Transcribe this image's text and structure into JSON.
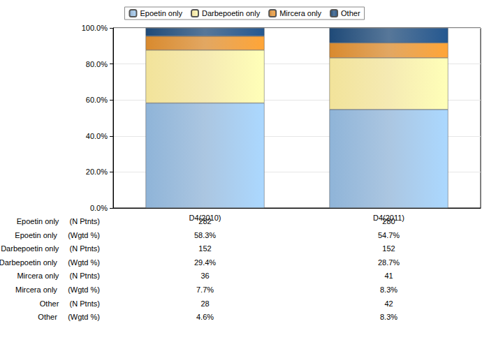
{
  "chart_data": {
    "type": "bar",
    "stacked": true,
    "grid": true,
    "legend": "top",
    "categories": [
      "D4(2010)",
      "D4(2011)"
    ],
    "ylim": [
      0,
      100
    ],
    "yticks": [
      {
        "value": 0,
        "label": "0.0%"
      },
      {
        "value": 20,
        "label": "20.0%"
      },
      {
        "value": 40,
        "label": "40.0%"
      },
      {
        "value": 60,
        "label": "60.0%"
      },
      {
        "value": 80,
        "label": "80.0%"
      },
      {
        "value": 100,
        "label": "100.0%"
      }
    ],
    "series": [
      {
        "name": "Epoetin only",
        "color": "#8fb4d8",
        "values": [
          58.3,
          54.7
        ]
      },
      {
        "name": "Darbepoetin only",
        "color": "#f2e39a",
        "values": [
          29.4,
          28.7
        ]
      },
      {
        "name": "Mircera only",
        "color": "#d98a2e",
        "values": [
          7.7,
          8.3
        ]
      },
      {
        "name": "Other",
        "color": "#1f4a78",
        "values": [
          4.6,
          8.3
        ]
      }
    ],
    "table": {
      "rows": [
        {
          "label": "Epoetin only",
          "measure": "(N Ptnts)",
          "cells": [
            "282",
            "280"
          ]
        },
        {
          "label": "Epoetin only",
          "measure": "(Wgtd %)",
          "cells": [
            "58.3%",
            "54.7%"
          ]
        },
        {
          "label": "Darbepoetin only",
          "measure": "(N Ptnts)",
          "cells": [
            "152",
            "152"
          ]
        },
        {
          "label": "Darbepoetin only",
          "measure": "(Wgtd %)",
          "cells": [
            "29.4%",
            "28.7%"
          ]
        },
        {
          "label": "Mircera only",
          "measure": "(N Ptnts)",
          "cells": [
            "36",
            "41"
          ]
        },
        {
          "label": "Mircera only",
          "measure": "(Wgtd %)",
          "cells": [
            "7.7%",
            "8.3%"
          ]
        },
        {
          "label": "Other",
          "measure": "(N Ptnts)",
          "cells": [
            "28",
            "42"
          ]
        },
        {
          "label": "Other",
          "measure": "(Wgtd %)",
          "cells": [
            "4.6%",
            "8.3%"
          ]
        }
      ]
    }
  }
}
